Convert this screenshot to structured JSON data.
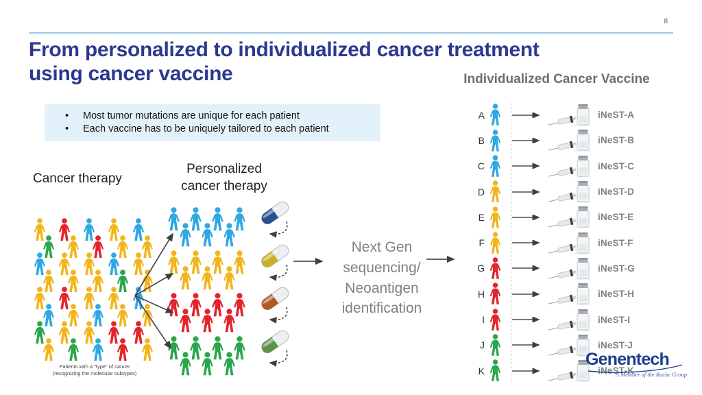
{
  "page_number": "8",
  "title": {
    "line1": "From personalized to individualized cancer treatment",
    "line2": "using cancer vaccine"
  },
  "right_heading": "Individualized Cancer Vaccine",
  "callout": {
    "marker": "•",
    "bullet1": "Most tumor mutations are unique for each patient",
    "bullet2": "Each vaccine has to be uniquely tailored to each patient"
  },
  "cancer_therapy": {
    "label": "Cancer therapy",
    "caption1": "Patients with a \"type\" of cancer",
    "caption2": "(recognizing the molecular subtypes)",
    "crowd_rows": [
      [
        "yellow",
        "red",
        "blue",
        "yellow",
        "blue"
      ],
      [
        "green",
        "yellow",
        "red",
        "yellow",
        "yellow"
      ],
      [
        "blue",
        "yellow",
        "yellow",
        "blue",
        "yellow"
      ],
      [
        "yellow",
        "yellow",
        "yellow",
        "green",
        "yellow"
      ],
      [
        "yellow",
        "red",
        "yellow",
        "yellow",
        "blue"
      ],
      [
        "blue",
        "yellow",
        "blue",
        "yellow",
        "yellow"
      ],
      [
        "green",
        "yellow",
        "yellow",
        "red",
        "red"
      ],
      [
        "yellow",
        "green",
        "blue",
        "red",
        "yellow"
      ]
    ]
  },
  "personalized": {
    "label1": "Personalized",
    "label2": "cancer therapy",
    "groups": [
      {
        "name": "blue-subtype",
        "person_color_key": "blue",
        "pill_color": "#2C4E92"
      },
      {
        "name": "yellow-subtype",
        "person_color_key": "yellow",
        "pill_color": "#C9AE2A"
      },
      {
        "name": "red-subtype",
        "person_color_key": "red",
        "pill_color": "#AF5A23"
      },
      {
        "name": "green-subtype",
        "person_color_key": "green",
        "pill_color": "#5F9448"
      }
    ]
  },
  "process": {
    "lines": [
      "Next Gen",
      "sequencing/",
      "Neoantigen",
      "identification"
    ]
  },
  "vaccines": {
    "rows": [
      {
        "letter": "A",
        "color_key": "blue",
        "label": "iNeST-A"
      },
      {
        "letter": "B",
        "color_key": "blue",
        "label": "iNeST-B"
      },
      {
        "letter": "C",
        "color_key": "blue",
        "label": "iNeST-C"
      },
      {
        "letter": "D",
        "color_key": "yellow",
        "label": "iNeST-D"
      },
      {
        "letter": "E",
        "color_key": "yellow",
        "label": "iNeST-E"
      },
      {
        "letter": "F",
        "color_key": "yellow",
        "label": "iNeST-F"
      },
      {
        "letter": "G",
        "color_key": "red",
        "label": "iNeST-G"
      },
      {
        "letter": "H",
        "color_key": "red",
        "label": "iNeST-H"
      },
      {
        "letter": "I",
        "color_key": "red",
        "label": "iNeST-I"
      },
      {
        "letter": "J",
        "color_key": "green",
        "label": "iNeST-J"
      },
      {
        "letter": "K",
        "color_key": "green",
        "label": "iNeST-K"
      }
    ]
  },
  "logo": {
    "brand": "Genentech",
    "tagline": "A Member of the Roche Group"
  },
  "colors": {
    "person_blue": "#2FA8E1",
    "person_yellow": "#F3B51D",
    "person_red": "#E3242B",
    "person_green": "#2AA64C",
    "title_navy": "#2B3990",
    "heading_gray": "#6D6E71",
    "callout_bg": "#E3F1FA",
    "arrow_gray": "#4A4B4D",
    "process_gray": "#7F8285",
    "brand_blue": "#1C3E91",
    "top_rule_blue": "#9CC9E4"
  }
}
